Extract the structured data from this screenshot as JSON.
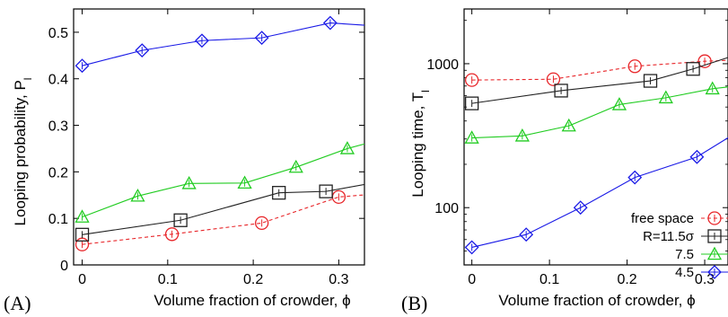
{
  "chart_data": [
    {
      "type": "line",
      "panel_label": "(A)",
      "xlabel": "Volume fraction of crowder, ϕ",
      "ylabel": "Looping probability, P",
      "ylabel_sub": "l",
      "xlim": [
        -0.01,
        0.33
      ],
      "ylim": [
        0,
        0.55
      ],
      "x_ticks": [
        0,
        0.1,
        0.2,
        0.3
      ],
      "x_tick_labels": [
        "0",
        "0.1",
        "0.2",
        "0.3"
      ],
      "y_ticks": [
        0,
        0.1,
        0.2,
        0.3,
        0.4,
        0.5
      ],
      "y_tick_labels": [
        "0",
        "0.1",
        "0.2",
        "0.3",
        "0.4",
        "0.5"
      ],
      "yscale": "linear",
      "series": [
        {
          "color": "#e8262a",
          "marker": "circle",
          "dash": true,
          "points": [
            [
              0,
              0.044
            ],
            [
              0.105,
              0.066
            ],
            [
              0.21,
              0.09
            ],
            [
              0.3,
              0.146
            ],
            [
              0.34,
              0.152
            ]
          ]
        },
        {
          "color": "#222222",
          "marker": "square",
          "dash": false,
          "points": [
            [
              0,
              0.065
            ],
            [
              0.115,
              0.096
            ],
            [
              0.23,
              0.155
            ],
            [
              0.285,
              0.158
            ],
            [
              0.34,
              0.176
            ]
          ]
        },
        {
          "color": "#22cc22",
          "marker": "triangle",
          "dash": false,
          "points": [
            [
              0,
              0.103
            ],
            [
              0.065,
              0.148
            ],
            [
              0.125,
              0.175
            ],
            [
              0.19,
              0.176
            ],
            [
              0.25,
              0.21
            ],
            [
              0.31,
              0.25
            ],
            [
              0.34,
              0.265
            ]
          ]
        },
        {
          "color": "#1a1ae6",
          "marker": "diamond",
          "dash": false,
          "points": [
            [
              0,
              0.428
            ],
            [
              0.07,
              0.461
            ],
            [
              0.14,
              0.482
            ],
            [
              0.21,
              0.488
            ],
            [
              0.29,
              0.52
            ],
            [
              0.34,
              0.514
            ]
          ]
        }
      ]
    },
    {
      "type": "line",
      "panel_label": "(B)",
      "xlabel": "Volume fraction of crowder, ϕ",
      "ylabel": "Looping time, T",
      "ylabel_sub": "l",
      "xlim": [
        -0.01,
        0.33
      ],
      "ylim": [
        40,
        2400
      ],
      "yscale": "log",
      "x_ticks": [
        0,
        0.1,
        0.2,
        0.3
      ],
      "x_tick_labels": [
        "0",
        "0.1",
        "0.2",
        "0.3"
      ],
      "y_ticks": [
        100,
        1000
      ],
      "y_tick_labels": [
        "100",
        "1000"
      ],
      "legend_position": "bottom-right",
      "series": [
        {
          "name": "free space",
          "color": "#e8262a",
          "marker": "circle",
          "dash": true,
          "points": [
            [
              0,
              770
            ],
            [
              0.105,
              780
            ],
            [
              0.21,
              960
            ],
            [
              0.3,
              1040
            ],
            [
              0.34,
              1060
            ]
          ]
        },
        {
          "name": "R=11.5σ",
          "color": "#222222",
          "marker": "square",
          "dash": false,
          "points": [
            [
              0,
              530
            ],
            [
              0.115,
              650
            ],
            [
              0.23,
              760
            ],
            [
              0.285,
              920
            ],
            [
              0.34,
              1150
            ]
          ]
        },
        {
          "name": "7.5",
          "color": "#22cc22",
          "marker": "triangle",
          "dash": false,
          "points": [
            [
              0,
              305
            ],
            [
              0.065,
              315
            ],
            [
              0.125,
              370
            ],
            [
              0.19,
              520
            ],
            [
              0.25,
              580
            ],
            [
              0.31,
              670
            ],
            [
              0.34,
              700
            ]
          ]
        },
        {
          "name": "4.5",
          "color": "#1a1ae6",
          "marker": "diamond",
          "dash": false,
          "points": [
            [
              0,
              53
            ],
            [
              0.07,
              65
            ],
            [
              0.14,
              100
            ],
            [
              0.21,
              162
            ],
            [
              0.29,
              225
            ],
            [
              0.34,
              330
            ]
          ]
        }
      ]
    }
  ]
}
